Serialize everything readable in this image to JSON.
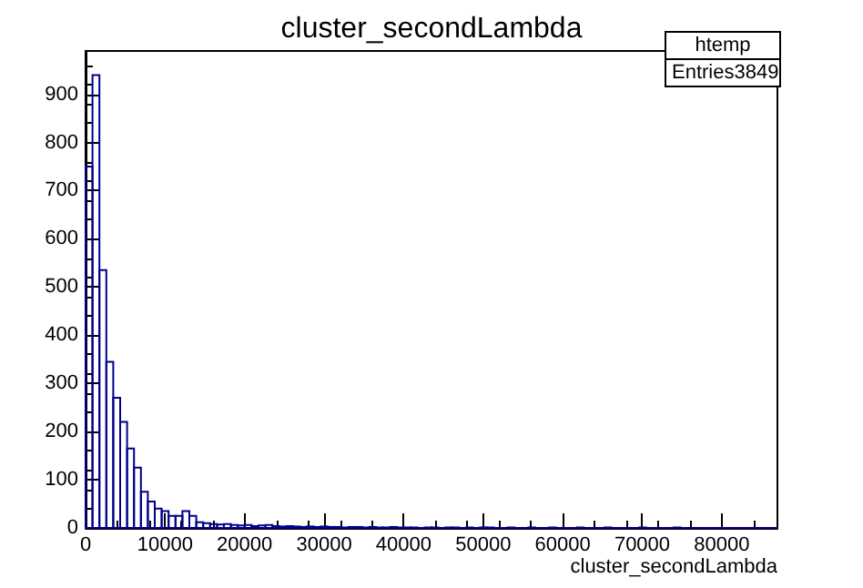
{
  "chart_data": {
    "type": "histogram",
    "title": "cluster_secondLambda",
    "xlabel": "cluster_secondLambda",
    "annotations": [
      "htemp",
      "Entries",
      "3849"
    ],
    "color": "#00008b",
    "bins": [
      0,
      870,
      1740,
      2610,
      3480,
      4350,
      5220,
      6090,
      6960,
      7830,
      8700,
      9570,
      10440,
      11310,
      12180,
      13050,
      13920,
      14790,
      15660,
      16530,
      17400,
      18270,
      19140,
      20010,
      20880,
      21750,
      22620,
      23490,
      24360,
      25230,
      26100,
      26970,
      27840,
      28710,
      29580,
      30450,
      31320,
      32190,
      33060,
      33930,
      34800,
      35670,
      36540,
      37410,
      38280,
      39150,
      40020,
      40890,
      41760,
      42630,
      43500,
      44370,
      45240,
      46110,
      46980,
      47850,
      48720,
      49590,
      50460,
      51330,
      52200,
      53070,
      53940,
      54810,
      55680,
      56550,
      57420,
      58290,
      59160,
      60030,
      60900,
      61770,
      62640,
      63510,
      64380,
      65250,
      66120,
      66990,
      67860,
      68730,
      69600,
      70470,
      71340,
      72210,
      73080,
      73950,
      74820,
      75690,
      76560,
      77430,
      78300,
      79170,
      80040,
      80910,
      81780,
      82650,
      83520,
      84390,
      85260,
      86130,
      87000
    ],
    "values": [
      750,
      940,
      535,
      345,
      270,
      220,
      165,
      125,
      75,
      55,
      40,
      35,
      25,
      25,
      35,
      25,
      12,
      10,
      8,
      7,
      8,
      6,
      5,
      6,
      4,
      5,
      6,
      4,
      3,
      4,
      3,
      2,
      3,
      2,
      3,
      2,
      2,
      1,
      2,
      2,
      1,
      2,
      1,
      1,
      2,
      1,
      1,
      1,
      0,
      1,
      1,
      0,
      1,
      1,
      0,
      1,
      0,
      1,
      1,
      0,
      0,
      1,
      0,
      0,
      1,
      0,
      0,
      1,
      0,
      0,
      0,
      1,
      0,
      0,
      0,
      1,
      0,
      0,
      0,
      0,
      1,
      0,
      0,
      0,
      0,
      1,
      0,
      0,
      0,
      0,
      0,
      0,
      0,
      0,
      0,
      0,
      0,
      0,
      0,
      0
    ],
    "xlim": [
      0,
      87000
    ],
    "xticks": [
      0,
      10000,
      20000,
      30000,
      40000,
      50000,
      60000,
      70000,
      80000
    ],
    "ylim": [
      0,
      990
    ],
    "yticks": [
      0,
      100,
      200,
      300,
      400,
      500,
      600,
      700,
      800,
      900
    ],
    "grid": false
  }
}
